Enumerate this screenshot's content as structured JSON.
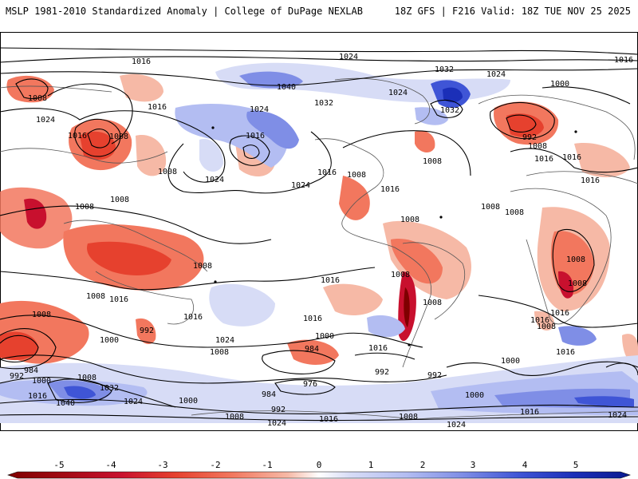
{
  "header": {
    "title_left": "MSLP 1981-2010 Standardized Anomaly | College of DuPage NEXLAB",
    "title_right": "18Z GFS | F216 Valid: 18Z TUE NOV 25 2025"
  },
  "colors": {
    "neg5": "#7f0000",
    "neg4": "#c8102e",
    "neg3": "#e6412e",
    "neg2": "#f2775e",
    "neg1": "#f6b9a6",
    "zero": "#ffffff",
    "pos1": "#d7dcf6",
    "pos2": "#b3bdf2",
    "pos3": "#7f8ee6",
    "pos4": "#3f55d6",
    "pos5": "#1b2fb8",
    "contour": "#000000",
    "coast": "#555555"
  },
  "colorbar": {
    "ticks": [
      "-5",
      "-4",
      "-3",
      "-2",
      "-1",
      "0",
      "1",
      "2",
      "3",
      "4",
      "5"
    ]
  },
  "isobar_labels": [
    "1016",
    "1024",
    "1032",
    "1024",
    "1016",
    "1008",
    "1016",
    "1024",
    "1016",
    "1008",
    "1008",
    "1008",
    "1040",
    "1024",
    "1032",
    "1024",
    "1032",
    "1000",
    "992",
    "1008",
    "1016",
    "1016",
    "1016",
    "1024",
    "1024",
    "1016",
    "1008",
    "1008",
    "1016",
    "1008",
    "1008",
    "1016",
    "1008",
    "1008",
    "1008",
    "1008",
    "1016",
    "1008",
    "1016",
    "1008",
    "1016",
    "1008",
    "1008",
    "1008",
    "992",
    "1016",
    "1024",
    "1008",
    "1016",
    "1000",
    "1016",
    "1016",
    "1008",
    "1000",
    "984",
    "992",
    "976",
    "992",
    "1000",
    "1016",
    "992",
    "984",
    "1000",
    "1008",
    "1032",
    "1016",
    "1040",
    "1024",
    "1000",
    "984",
    "992",
    "1000",
    "1008",
    "1024",
    "1016",
    "1008",
    "1024",
    "1016",
    "1024"
  ]
}
